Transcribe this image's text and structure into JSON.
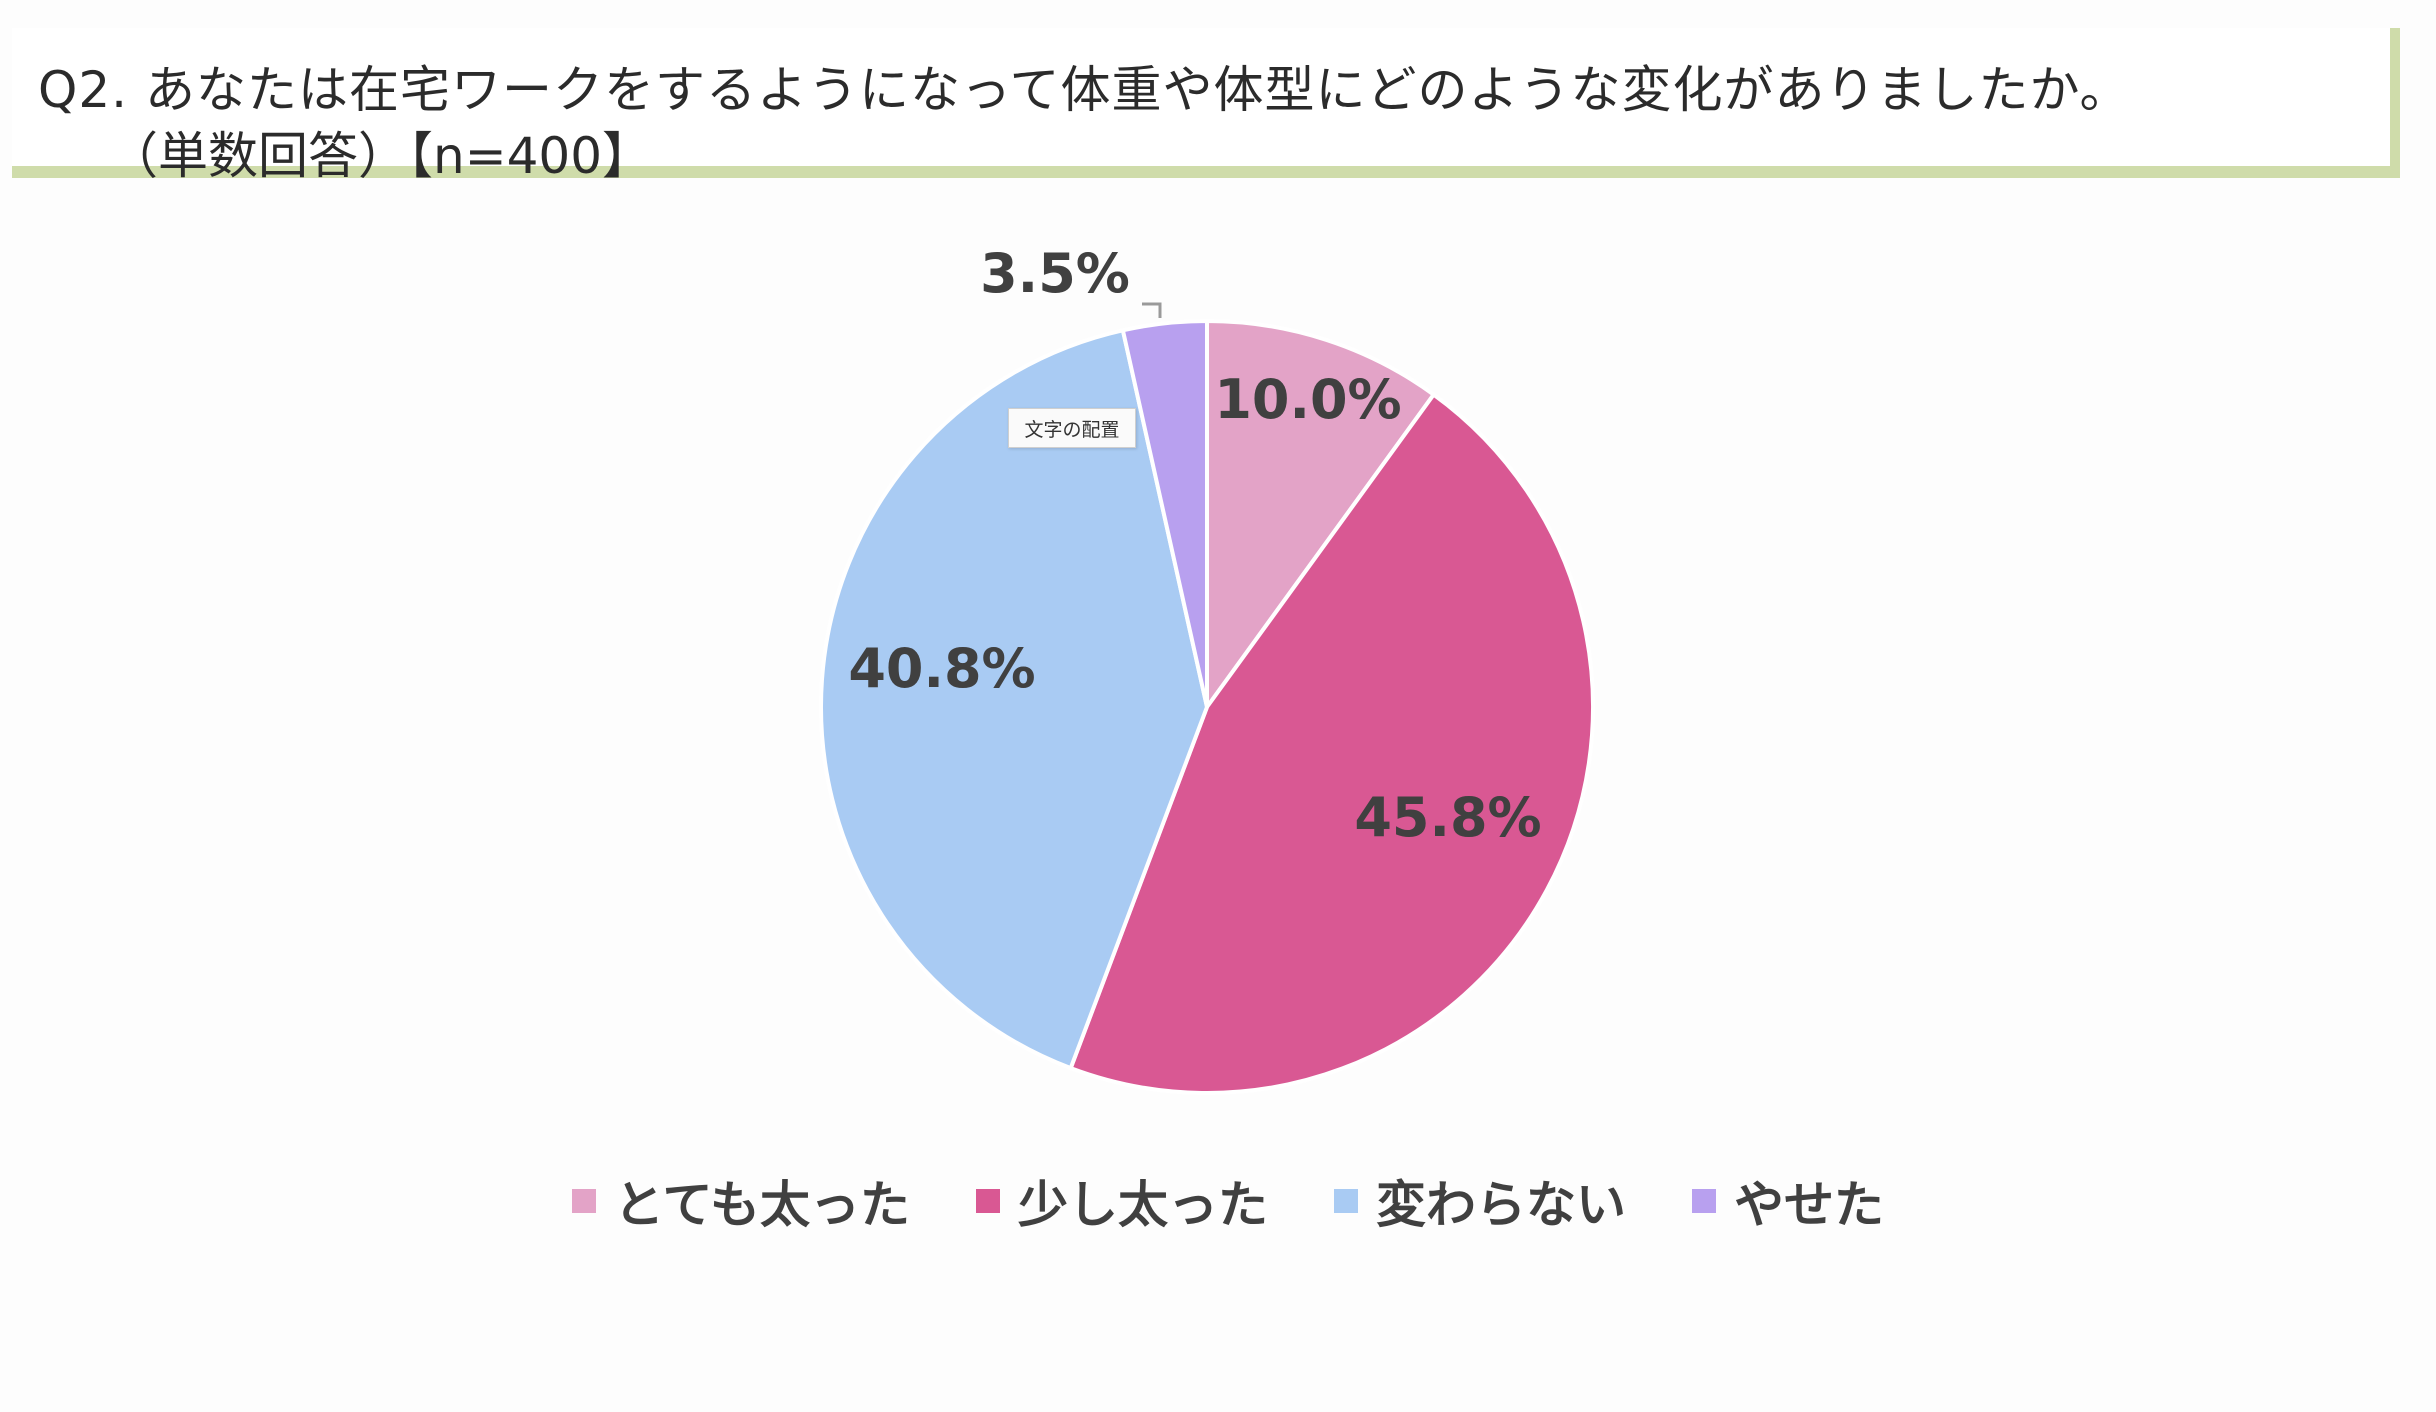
{
  "question": {
    "line1": "Q2. あなたは在宅ワークをするようになって体重や体型にどのような変化がありましたか。",
    "line2": "（単数回答）【n=400】"
  },
  "tooltip": "文字の配置",
  "chart_data": {
    "type": "pie",
    "categories": [
      "とても太った",
      "少し太った",
      "変わらない",
      "やせた"
    ],
    "values": [
      10.0,
      45.8,
      40.8,
      3.5
    ],
    "labels": [
      "10.0%",
      "45.8%",
      "40.8%",
      "3.5%"
    ],
    "colors": [
      "#e3a3c7",
      "#d95893",
      "#a9cbf3",
      "#b8a0ef"
    ],
    "start": "12 o'clock",
    "direction": "clockwise",
    "legend_position": "bottom"
  }
}
